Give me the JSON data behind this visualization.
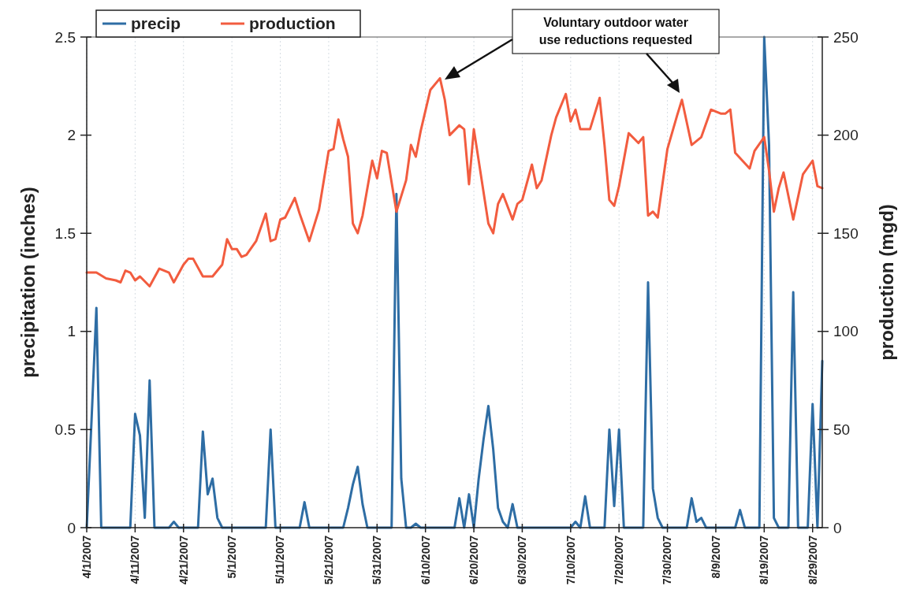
{
  "chart_data": {
    "type": "line",
    "xlabel": null,
    "ylabel": "precipitation (inches)",
    "y2label": "production (mgd)",
    "xlim": [
      "2007-04-01",
      "2007-08-31"
    ],
    "xticks": [
      {
        "value": "2007-04-01",
        "label": "4/1/2007"
      },
      {
        "value": "2007-04-11",
        "label": "4/11/2007"
      },
      {
        "value": "2007-04-21",
        "label": "4/21/2007"
      },
      {
        "value": "2007-05-01",
        "label": "5/1/2007"
      },
      {
        "value": "2007-05-11",
        "label": "5/11/2007"
      },
      {
        "value": "2007-05-21",
        "label": "5/21/2007"
      },
      {
        "value": "2007-05-31",
        "label": "5/31/2007"
      },
      {
        "value": "2007-06-10",
        "label": "6/10/2007"
      },
      {
        "value": "2007-06-20",
        "label": "6/20/2007"
      },
      {
        "value": "2007-06-30",
        "label": "6/30/2007"
      },
      {
        "value": "2007-07-10",
        "label": "7/10/2007"
      },
      {
        "value": "2007-07-20",
        "label": "7/20/2007"
      },
      {
        "value": "2007-07-30",
        "label": "7/30/2007"
      },
      {
        "value": "2007-08-09",
        "label": "8/9/2007"
      },
      {
        "value": "2007-08-19",
        "label": "8/19/2007"
      },
      {
        "value": "2007-08-29",
        "label": "8/29/2007"
      }
    ],
    "ylim": [
      0,
      2.5
    ],
    "yticks": [
      0,
      0.5,
      1,
      1.5,
      2,
      2.5
    ],
    "y2lim": [
      0,
      250
    ],
    "y2ticks": [
      0,
      50,
      100,
      150,
      200,
      250
    ],
    "grid": "x",
    "legend": "top left",
    "annotations": [
      "Voluntary outdoor water use reductions requested"
    ],
    "series": [
      {
        "name": "precip",
        "color": "#2e6da4",
        "x": [
          "2007-04-01",
          "2007-04-02",
          "2007-04-03",
          "2007-04-04",
          "2007-04-10",
          "2007-04-11",
          "2007-04-12",
          "2007-04-13",
          "2007-04-14",
          "2007-04-15",
          "2007-04-18",
          "2007-04-19",
          "2007-04-20",
          "2007-04-24",
          "2007-04-25",
          "2007-04-26",
          "2007-04-27",
          "2007-04-28",
          "2007-04-29",
          "2007-05-08",
          "2007-05-09",
          "2007-05-10",
          "2007-05-15",
          "2007-05-16",
          "2007-05-17",
          "2007-05-24",
          "2007-05-25",
          "2007-05-26",
          "2007-05-27",
          "2007-05-28",
          "2007-05-29",
          "2007-06-03",
          "2007-06-04",
          "2007-06-05",
          "2007-06-06",
          "2007-06-07",
          "2007-06-08",
          "2007-06-09",
          "2007-06-16",
          "2007-06-17",
          "2007-06-18",
          "2007-06-19",
          "2007-06-20",
          "2007-06-21",
          "2007-06-22",
          "2007-06-23",
          "2007-06-24",
          "2007-06-25",
          "2007-06-26",
          "2007-06-27",
          "2007-06-28",
          "2007-06-29",
          "2007-07-10",
          "2007-07-11",
          "2007-07-12",
          "2007-07-13",
          "2007-07-14",
          "2007-07-17",
          "2007-07-18",
          "2007-07-19",
          "2007-07-20",
          "2007-07-21",
          "2007-07-25",
          "2007-07-26",
          "2007-07-27",
          "2007-07-28",
          "2007-07-29",
          "2007-08-03",
          "2007-08-04",
          "2007-08-05",
          "2007-08-06",
          "2007-08-07",
          "2007-08-13",
          "2007-08-14",
          "2007-08-15",
          "2007-08-18",
          "2007-08-19",
          "2007-08-20",
          "2007-08-21",
          "2007-08-22",
          "2007-08-24",
          "2007-08-25",
          "2007-08-26",
          "2007-08-28",
          "2007-08-29",
          "2007-08-30",
          "2007-08-31"
        ],
        "values": [
          0,
          0.55,
          1.12,
          0,
          0,
          0.58,
          0.47,
          0.05,
          0.75,
          0,
          0,
          0.03,
          0,
          0,
          0.49,
          0.17,
          0.25,
          0.05,
          0,
          0,
          0.5,
          0,
          0,
          0.13,
          0,
          0,
          0.1,
          0.22,
          0.31,
          0.12,
          0,
          0,
          1.7,
          0.25,
          0,
          0,
          0.02,
          0,
          0,
          0.15,
          0,
          0.17,
          0,
          0.25,
          0.45,
          0.62,
          0.4,
          0.1,
          0.03,
          0,
          0.12,
          0,
          0,
          0.03,
          0,
          0.16,
          0,
          0,
          0.5,
          0.11,
          0.5,
          0,
          0,
          1.25,
          0.2,
          0.05,
          0,
          0,
          0.15,
          0.03,
          0.05,
          0,
          0,
          0.09,
          0,
          0,
          2.5,
          1.95,
          0.05,
          0,
          0,
          1.2,
          0,
          0,
          0.63,
          0,
          0.85
        ]
      },
      {
        "name": "production",
        "color": "#f25c3f",
        "axis": "y2",
        "x": [
          "2007-04-01",
          "2007-04-03",
          "2007-04-05",
          "2007-04-07",
          "2007-04-08",
          "2007-04-09",
          "2007-04-10",
          "2007-04-11",
          "2007-04-12",
          "2007-04-14",
          "2007-04-16",
          "2007-04-18",
          "2007-04-19",
          "2007-04-21",
          "2007-04-22",
          "2007-04-23",
          "2007-04-25",
          "2007-04-27",
          "2007-04-29",
          "2007-04-30",
          "2007-05-01",
          "2007-05-02",
          "2007-05-03",
          "2007-05-04",
          "2007-05-06",
          "2007-05-08",
          "2007-05-09",
          "2007-05-10",
          "2007-05-11",
          "2007-05-12",
          "2007-05-14",
          "2007-05-15",
          "2007-05-17",
          "2007-05-19",
          "2007-05-21",
          "2007-05-22",
          "2007-05-23",
          "2007-05-24",
          "2007-05-25",
          "2007-05-26",
          "2007-05-27",
          "2007-05-28",
          "2007-05-30",
          "2007-05-31",
          "2007-06-01",
          "2007-06-02",
          "2007-06-04",
          "2007-06-06",
          "2007-06-07",
          "2007-06-08",
          "2007-06-09",
          "2007-06-11",
          "2007-06-13",
          "2007-06-14",
          "2007-06-15",
          "2007-06-17",
          "2007-06-18",
          "2007-06-19",
          "2007-06-20",
          "2007-06-23",
          "2007-06-24",
          "2007-06-25",
          "2007-06-26",
          "2007-06-28",
          "2007-06-29",
          "2007-06-30",
          "2007-07-02",
          "2007-07-03",
          "2007-07-04",
          "2007-07-06",
          "2007-07-07",
          "2007-07-09",
          "2007-07-10",
          "2007-07-11",
          "2007-07-12",
          "2007-07-14",
          "2007-07-16",
          "2007-07-17",
          "2007-07-18",
          "2007-07-19",
          "2007-07-20",
          "2007-07-22",
          "2007-07-24",
          "2007-07-25",
          "2007-07-26",
          "2007-07-27",
          "2007-07-28",
          "2007-07-30",
          "2007-08-01",
          "2007-08-02",
          "2007-08-04",
          "2007-08-06",
          "2007-08-08",
          "2007-08-10",
          "2007-08-11",
          "2007-08-12",
          "2007-08-13",
          "2007-08-16",
          "2007-08-17",
          "2007-08-19",
          "2007-08-20",
          "2007-08-21",
          "2007-08-22",
          "2007-08-23",
          "2007-08-25",
          "2007-08-27",
          "2007-08-29",
          "2007-08-30",
          "2007-08-31"
        ],
        "values": [
          130,
          130,
          127,
          126,
          125,
          131,
          130,
          126,
          128,
          123,
          132,
          130,
          125,
          134,
          137,
          137,
          128,
          128,
          134,
          147,
          142,
          142,
          138,
          139,
          146,
          160,
          146,
          147,
          157,
          158,
          168,
          160,
          146,
          162,
          192,
          193,
          208,
          198,
          189,
          155,
          150,
          159,
          187,
          178,
          192,
          191,
          161,
          177,
          195,
          189,
          202,
          223,
          229,
          218,
          200,
          205,
          203,
          175,
          203,
          155,
          150,
          165,
          170,
          157,
          165,
          167,
          185,
          173,
          177,
          200,
          209,
          221,
          207,
          213,
          203,
          203,
          219,
          195,
          167,
          164,
          174,
          201,
          196,
          199,
          159,
          161,
          158,
          193,
          210,
          218,
          195,
          199,
          213,
          211,
          211,
          213,
          191,
          183,
          192,
          199,
          182,
          161,
          173,
          181,
          157,
          180,
          187,
          174,
          173
        ]
      }
    ]
  }
}
